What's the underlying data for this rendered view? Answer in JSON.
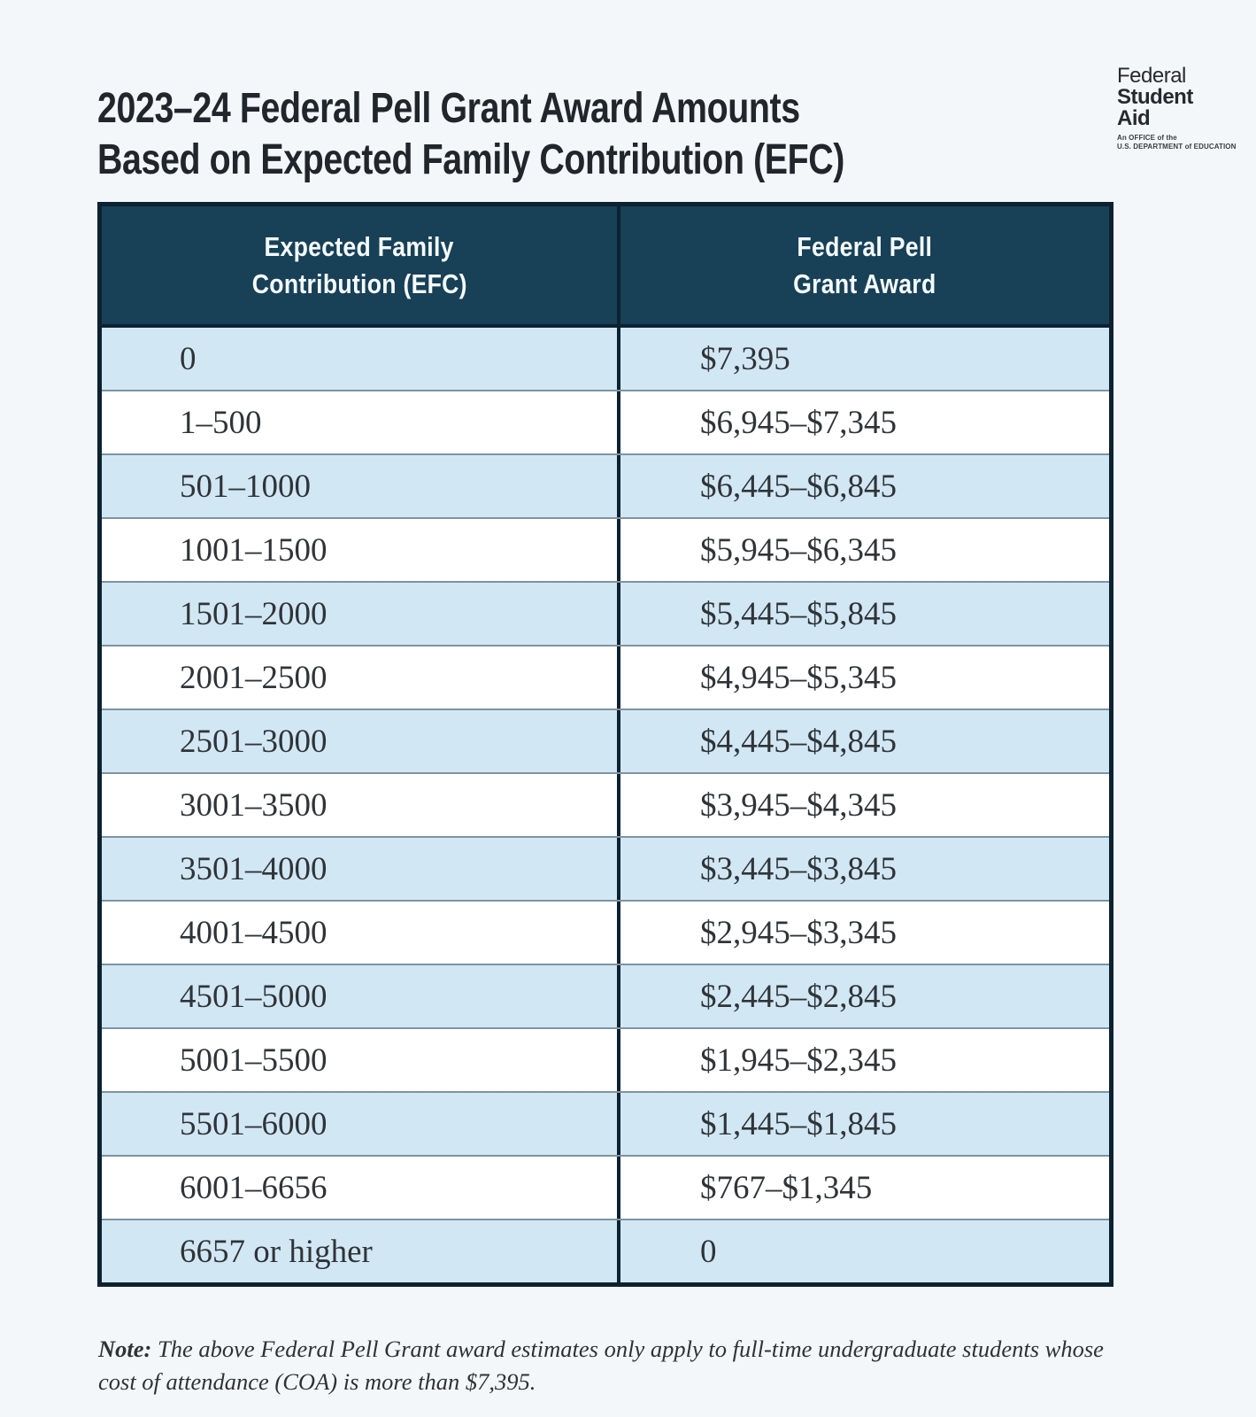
{
  "page": {
    "title": [
      "2023–24 Federal Pell Grant Award Amounts",
      "Based on Expected Family Contribution (EFC)"
    ],
    "note": {
      "label": "Note:",
      "text": "The above Federal Pell Grant award estimates only apply to full-time undergraduate students whose cost of attendance (COA) is more than $7,395."
    }
  },
  "logo": {
    "lines": [
      "Federal",
      "Student",
      "Aid"
    ],
    "tagline": [
      "An OFFICE of the",
      "U.S. DEPARTMENT of EDUCATION"
    ]
  },
  "table": {
    "headers": [
      {
        "lines": [
          "Expected Family",
          "Contribution (EFC)"
        ]
      },
      {
        "lines": [
          "Federal Pell",
          "Grant Award"
        ]
      }
    ],
    "rows": [
      {
        "efc": "0",
        "award": "$7,395"
      },
      {
        "efc": "1–500",
        "award": "$6,945–$7,345"
      },
      {
        "efc": "501–1000",
        "award": "$6,445–$6,845"
      },
      {
        "efc": "1001–1500",
        "award": "$5,945–$6,345"
      },
      {
        "efc": "1501–2000",
        "award": "$5,445–$5,845"
      },
      {
        "efc": "2001–2500",
        "award": "$4,945–$5,345"
      },
      {
        "efc": "2501–3000",
        "award": "$4,445–$4,845"
      },
      {
        "efc": "3001–3500",
        "award": "$3,945–$4,345"
      },
      {
        "efc": "3501–4000",
        "award": "$3,445–$3,845"
      },
      {
        "efc": "4001–4500",
        "award": "$2,945–$3,345"
      },
      {
        "efc": "4501–5000",
        "award": "$2,445–$2,845"
      },
      {
        "efc": "5001–5500",
        "award": "$1,945–$2,345"
      },
      {
        "efc": "5501–6000",
        "award": "$1,445–$1,845"
      },
      {
        "efc": "6001–6656",
        "award": "$767–$1,345"
      },
      {
        "efc": "6657 or higher",
        "award": "0"
      }
    ]
  },
  "colors": {
    "page_background": "#F4F7FA",
    "table_header_background": "#184056",
    "table_border": "#0C2231",
    "row_alternate_background": "#D2E7F4",
    "row_background": "#FFFFFF",
    "row_divider": "#7F93A0",
    "title_text": "#21262C",
    "header_text": "#F4FAFD",
    "body_text": "#2F3438"
  },
  "chart_data": {
    "type": "table",
    "title": "2023–24 Federal Pell Grant Award Amounts Based on Expected Family Contribution (EFC)",
    "columns": [
      "Expected Family Contribution (EFC)",
      "Federal Pell Grant Award"
    ],
    "rows": [
      [
        "0",
        "$7,395"
      ],
      [
        "1–500",
        "$6,945–$7,345"
      ],
      [
        "501–1000",
        "$6,445–$6,845"
      ],
      [
        "1001–1500",
        "$5,945–$6,345"
      ],
      [
        "1501–2000",
        "$5,445–$5,845"
      ],
      [
        "2001–2500",
        "$4,945–$5,345"
      ],
      [
        "2501–3000",
        "$4,445–$4,845"
      ],
      [
        "3001–3500",
        "$3,945–$4,345"
      ],
      [
        "3501–4000",
        "$3,445–$3,845"
      ],
      [
        "4001–4500",
        "$2,945–$3,345"
      ],
      [
        "4501–5000",
        "$2,445–$2,845"
      ],
      [
        "5001–5500",
        "$1,945–$2,345"
      ],
      [
        "5501–6000",
        "$1,445–$1,845"
      ],
      [
        "6001–6656",
        "$767–$1,345"
      ],
      [
        "6657 or higher",
        "0"
      ]
    ]
  }
}
